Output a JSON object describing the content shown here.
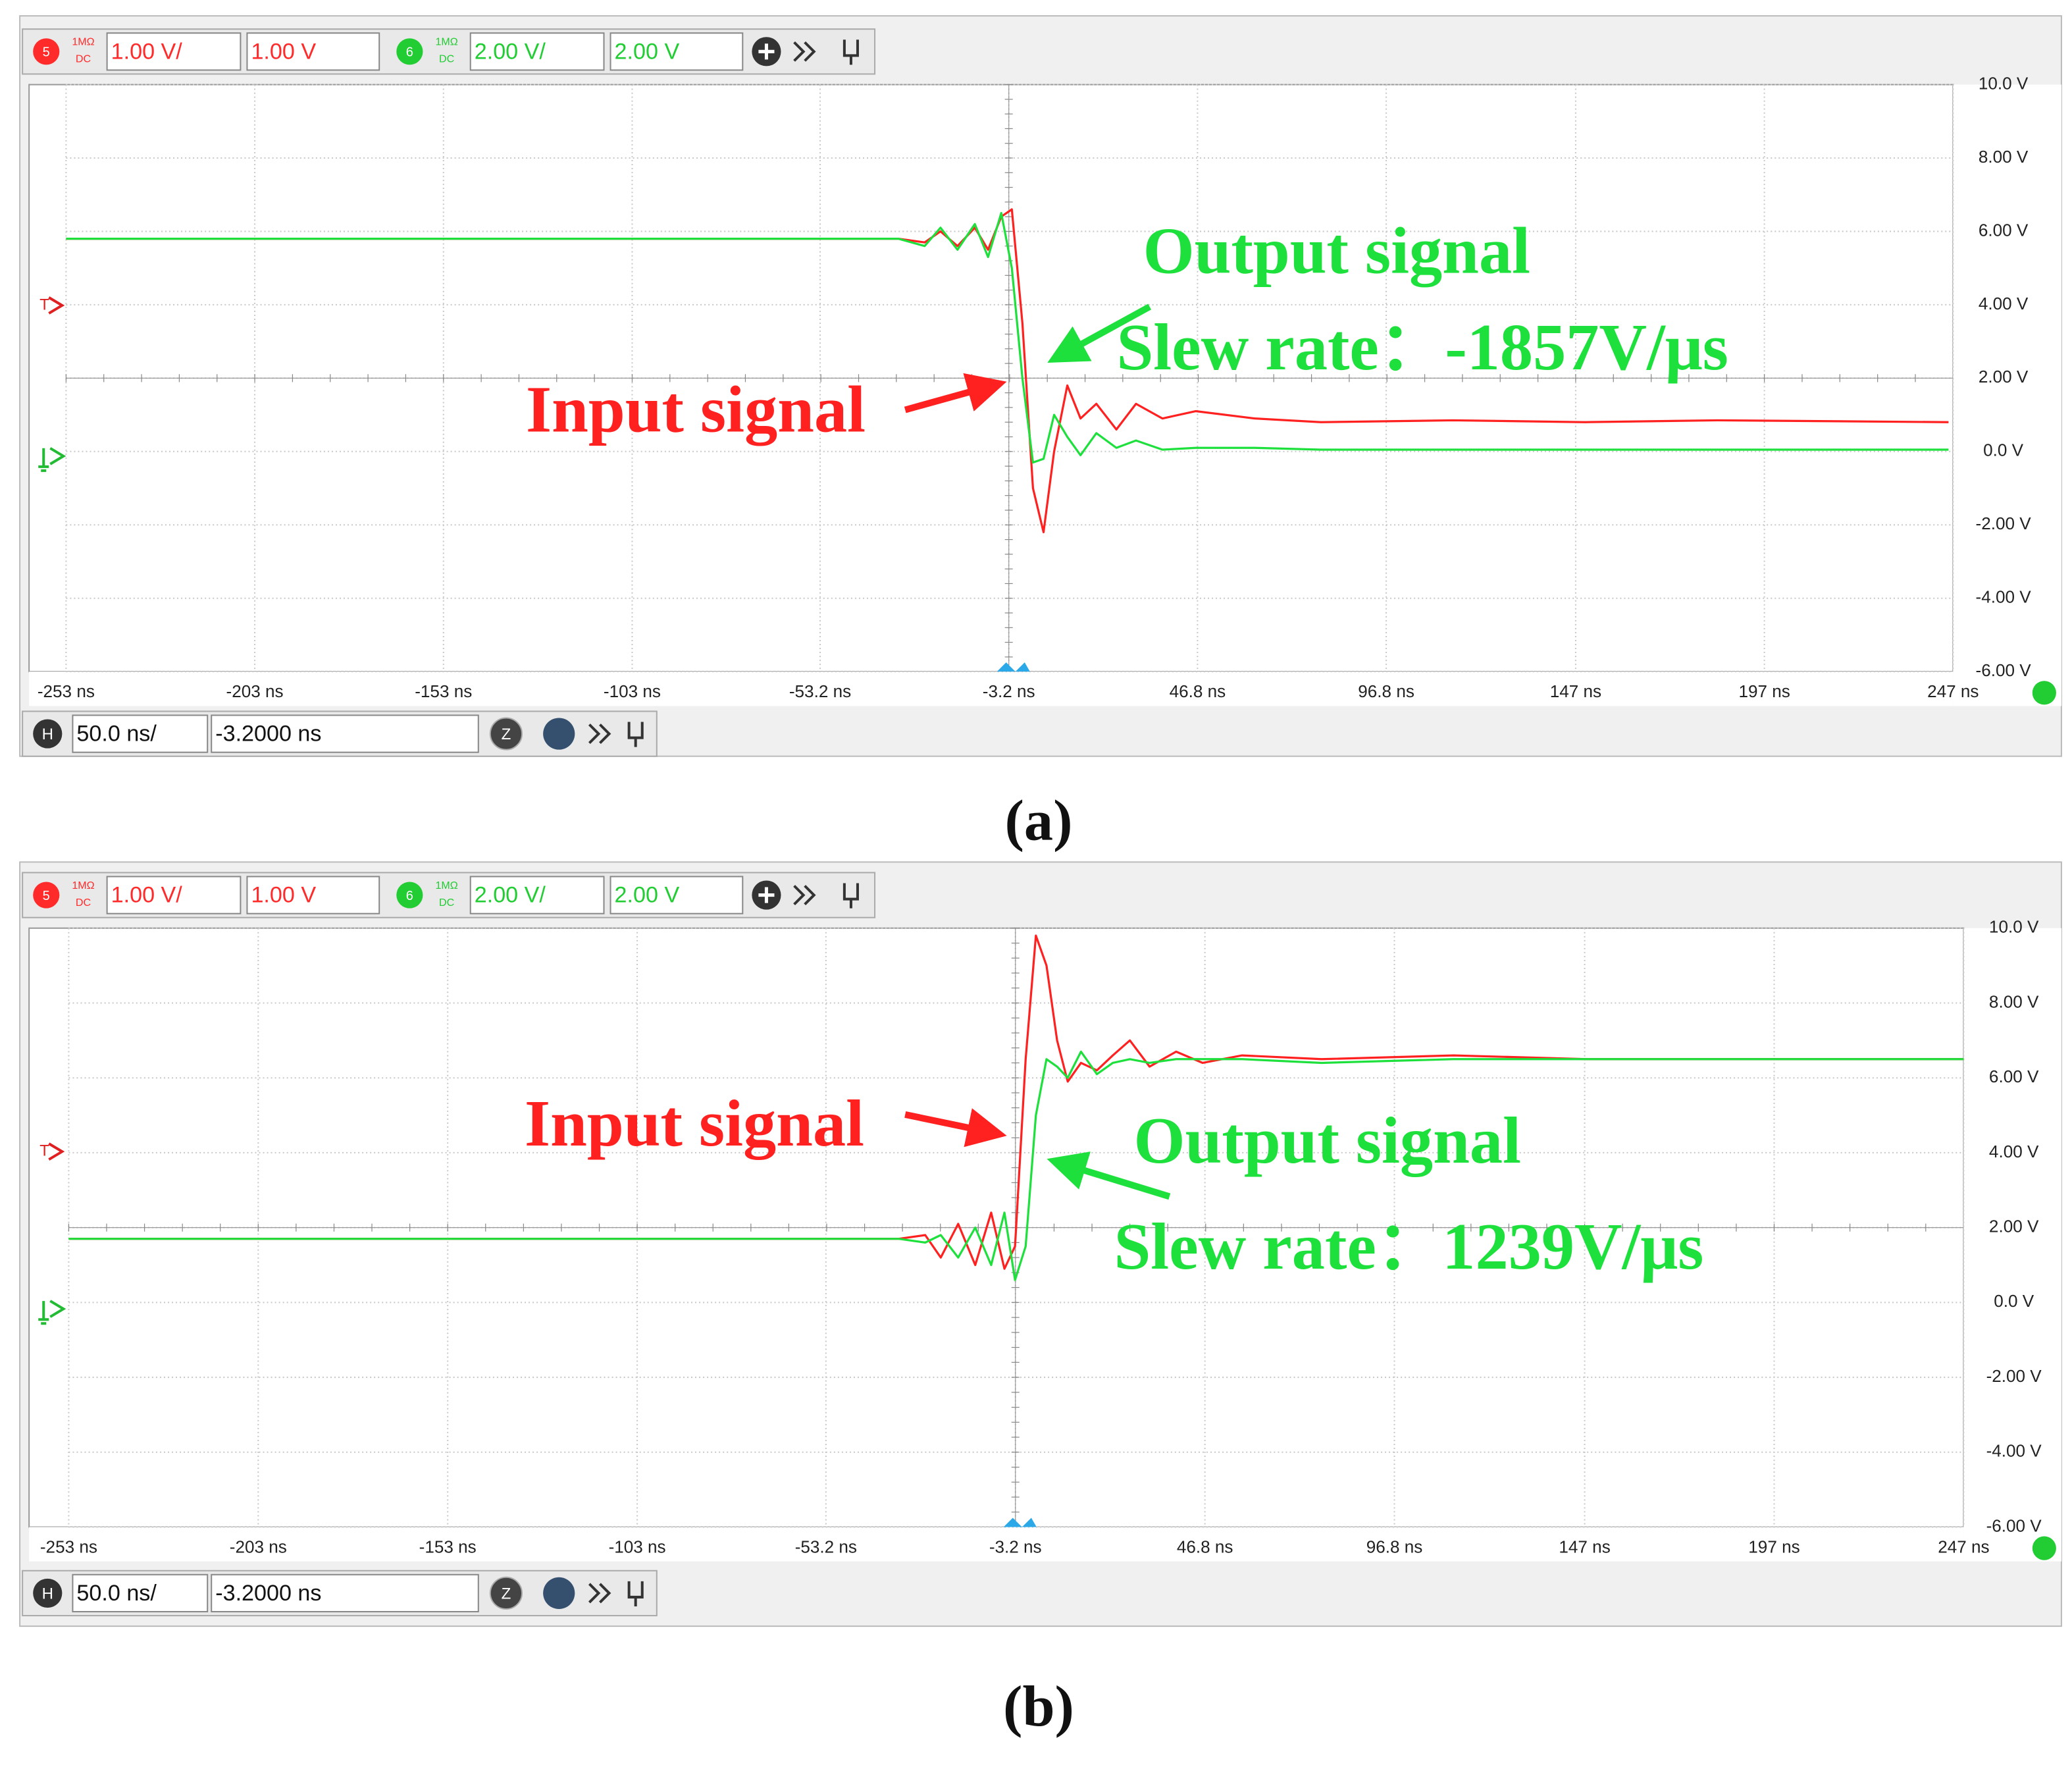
{
  "chart_data": [
    {
      "type": "line",
      "caption": "(a)",
      "trigger_marker": "T",
      "channels": [
        {
          "number": "5",
          "impedance": "1MΩ",
          "coupling": "DC",
          "scale": "1.00 V/",
          "offset": "1.00 V",
          "color": "#ff2a2a"
        },
        {
          "number": "6",
          "impedance": "1MΩ",
          "coupling": "DC",
          "scale": "2.00 V/",
          "offset": "2.00 V",
          "color": "#22cc33"
        }
      ],
      "timebase": {
        "label": "H",
        "scale": "50.0 ns/",
        "position": "-3.2000 ns",
        "zoom": "Z"
      },
      "x": [
        -253,
        -32.5,
        -25.5,
        -21.3,
        -16.8,
        -12.2,
        -8.7,
        -5.2,
        -2.4,
        0.4,
        3.2,
        6,
        8.8,
        12.3,
        15.8,
        20,
        25.3,
        30.5,
        37.5,
        46.3,
        62,
        79.5,
        114.5,
        149.5,
        184.5,
        245.8
      ],
      "series": [
        {
          "name": "Input signal",
          "color": "#ff2020",
          "values": [
            5.8,
            5.8,
            5.7,
            6.0,
            5.6,
            6.1,
            5.5,
            6.4,
            6.6,
            3.5,
            -1.0,
            -2.2,
            0.0,
            1.8,
            0.9,
            1.3,
            0.6,
            1.3,
            0.9,
            1.1,
            0.9,
            0.8,
            0.85,
            0.8,
            0.85,
            0.8
          ]
        },
        {
          "name": "Output signal",
          "color": "#1ee03c",
          "values": [
            5.8,
            5.8,
            5.6,
            6.1,
            5.5,
            6.2,
            5.3,
            6.5,
            5.0,
            2.0,
            -0.3,
            -0.2,
            1.0,
            0.4,
            -0.1,
            0.5,
            0.1,
            0.3,
            0.05,
            0.1,
            0.1,
            0.05,
            0.05,
            0.05,
            0.05,
            0.05
          ]
        }
      ],
      "annotation": "Slew rate：-1857V/μs",
      "xlim": [
        -253,
        247
      ],
      "xticks": [
        {
          "value": -253,
          "label": "-253 ns"
        },
        {
          "value": -203,
          "label": "-203 ns"
        },
        {
          "value": -153,
          "label": "-153 ns"
        },
        {
          "value": -103,
          "label": "-103 ns"
        },
        {
          "value": -53.2,
          "label": "-53.2 ns"
        },
        {
          "value": -3.2,
          "label": "-3.2 ns"
        },
        {
          "value": 46.8,
          "label": "46.8 ns"
        },
        {
          "value": 96.8,
          "label": "96.8 ns"
        },
        {
          "value": 147,
          "label": "147 ns"
        },
        {
          "value": 197,
          "label": "197 ns"
        },
        {
          "value": 247,
          "label": "247 ns"
        }
      ],
      "ylim": [
        -6,
        10
      ],
      "yticks": [
        {
          "value": 10,
          "label": "10.0 V"
        },
        {
          "value": 8,
          "label": "8.00 V"
        },
        {
          "value": 6,
          "label": "6.00 V"
        },
        {
          "value": 4,
          "label": "4.00 V"
        },
        {
          "value": 2,
          "label": "2.00 V"
        },
        {
          "value": 0,
          "label": "0.0 V"
        },
        {
          "value": -2,
          "label": "-2.00 V"
        },
        {
          "value": -4,
          "label": "-4.00 V"
        },
        {
          "value": -6,
          "label": "-6.00 V"
        }
      ],
      "grid": true
    },
    {
      "type": "line",
      "caption": "(b)",
      "trigger_marker": "T",
      "channels": [
        {
          "number": "5",
          "impedance": "1MΩ",
          "coupling": "DC",
          "scale": "1.00 V/",
          "offset": "1.00 V",
          "color": "#ff2a2a"
        },
        {
          "number": "6",
          "impedance": "1MΩ",
          "coupling": "DC",
          "scale": "2.00 V/",
          "offset": "2.00 V",
          "color": "#22cc33"
        }
      ],
      "timebase": {
        "label": "H",
        "scale": "50.0 ns/",
        "position": "-3.2000 ns",
        "zoom": "Z"
      },
      "x": [
        -253,
        -34,
        -27,
        -22.9,
        -18.3,
        -13.8,
        -9.6,
        -6.1,
        -3.3,
        -0.5,
        2.2,
        5.0,
        7.8,
        10.6,
        14.1,
        18.3,
        22.5,
        27,
        32.2,
        39.2,
        46.2,
        56.6,
        77.6,
        112.4,
        147.3,
        247
      ],
      "series": [
        {
          "name": "Input signal",
          "color": "#ff2020",
          "values": [
            1.7,
            1.7,
            1.8,
            1.2,
            2.1,
            1.0,
            2.4,
            0.9,
            1.5,
            6.5,
            9.8,
            9.0,
            7.0,
            5.9,
            6.4,
            6.2,
            6.6,
            7.0,
            6.3,
            6.7,
            6.4,
            6.6,
            6.5,
            6.6,
            6.5,
            6.5
          ]
        },
        {
          "name": "Output signal",
          "color": "#1ee03c",
          "values": [
            1.7,
            1.7,
            1.6,
            1.8,
            1.2,
            2.0,
            1.0,
            2.4,
            0.6,
            1.5,
            5.0,
            6.5,
            6.3,
            6.0,
            6.7,
            6.1,
            6.4,
            6.5,
            6.4,
            6.5,
            6.5,
            6.5,
            6.4,
            6.5,
            6.5,
            6.5
          ]
        }
      ],
      "annotation": "Slew rate：1239V/μs",
      "xlim": [
        -253,
        247
      ],
      "xticks": [
        {
          "value": -253,
          "label": "-253 ns"
        },
        {
          "value": -203,
          "label": "-203 ns"
        },
        {
          "value": -153,
          "label": "-153 ns"
        },
        {
          "value": -103,
          "label": "-103 ns"
        },
        {
          "value": -53.2,
          "label": "-53.2 ns"
        },
        {
          "value": -3.2,
          "label": "-3.2 ns"
        },
        {
          "value": 46.8,
          "label": "46.8 ns"
        },
        {
          "value": 96.8,
          "label": "96.8 ns"
        },
        {
          "value": 147,
          "label": "147 ns"
        },
        {
          "value": 197,
          "label": "197 ns"
        },
        {
          "value": 247,
          "label": "247 ns"
        }
      ],
      "ylim": [
        -6,
        10
      ],
      "yticks": [
        {
          "value": 10,
          "label": "10.0 V"
        },
        {
          "value": 8,
          "label": "8.00 V"
        },
        {
          "value": 6,
          "label": "6.00 V"
        },
        {
          "value": 4,
          "label": "4.00 V"
        },
        {
          "value": 2,
          "label": "2.00 V"
        },
        {
          "value": 0,
          "label": "0.0 V"
        },
        {
          "value": -2,
          "label": "-2.00 V"
        },
        {
          "value": -4,
          "label": "-4.00 V"
        },
        {
          "value": -6,
          "label": "-6.00 V"
        }
      ],
      "grid": true
    }
  ]
}
